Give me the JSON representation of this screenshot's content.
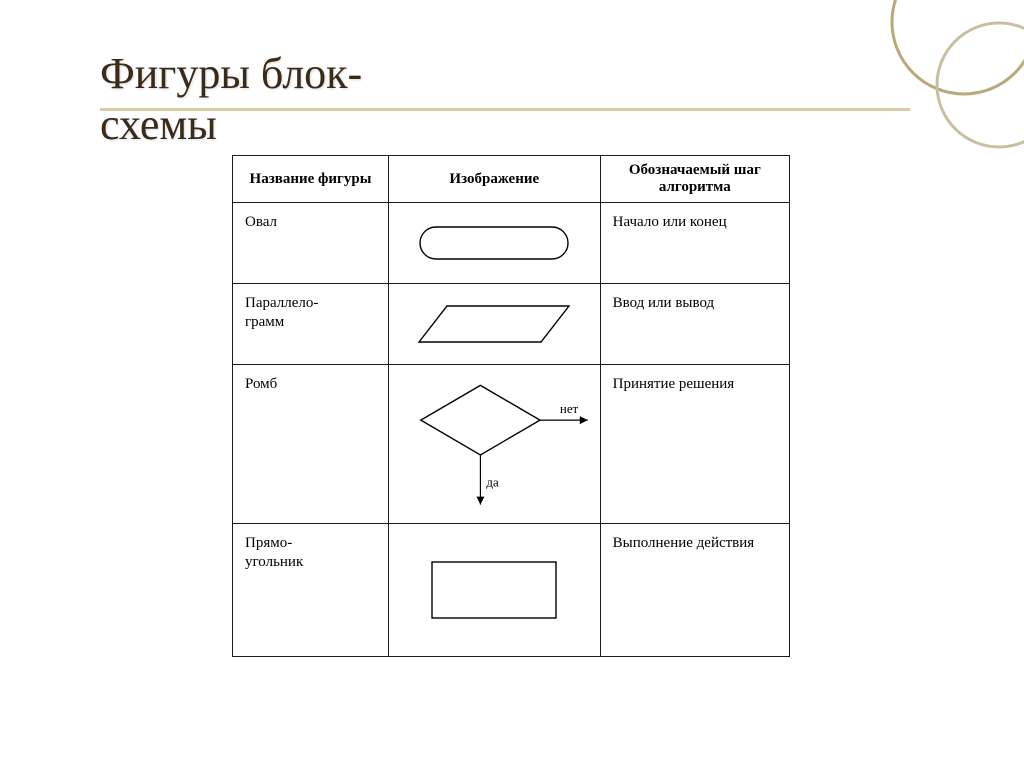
{
  "title": "Фигуры блок-схемы",
  "colors": {
    "title_text": "#3a2a1a",
    "underline": "#d9cba3",
    "circle_stroke": "#b8a87a",
    "table_border": "#1a1a1a",
    "shape_stroke": "#000000",
    "background": "#ffffff"
  },
  "table": {
    "headers": {
      "col1": "Название фигуры",
      "col2": "Изображение",
      "col3": "Обозначаемый шаг алгоритма"
    },
    "rows": [
      {
        "name": "Овал",
        "meaning": "Начало или конец",
        "shape": "oval"
      },
      {
        "name": "Параллело-грамм",
        "meaning": "Ввод или вывод",
        "shape": "parallelogram"
      },
      {
        "name": "Ромб",
        "meaning": "Принятие решения",
        "shape": "rhombus",
        "labels": {
          "right": "нет",
          "down": "да"
        }
      },
      {
        "name": "Прямо-угольник",
        "meaning": "Выполнение действия",
        "shape": "rectangle"
      }
    ]
  },
  "style": {
    "title_fontsize": 44,
    "header_fontsize": 15,
    "cell_fontsize": 15,
    "shape_stroke_width": 1.4,
    "table_border_width": 1.5
  }
}
